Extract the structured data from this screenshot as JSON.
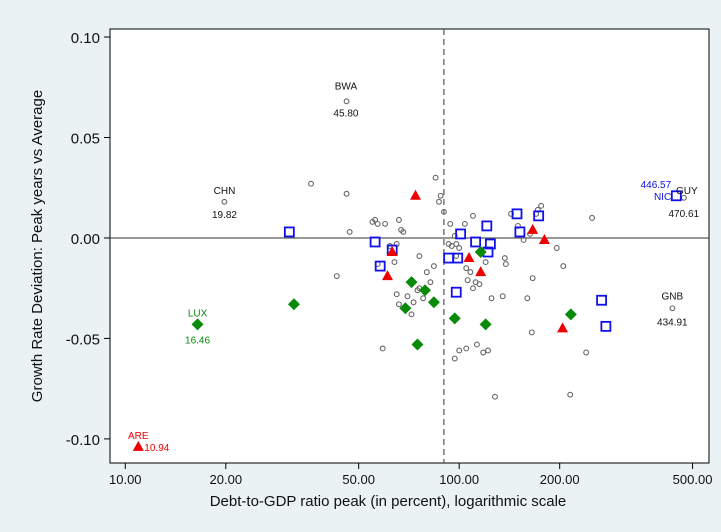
{
  "chart_data": {
    "type": "scatter",
    "title": "",
    "xlabel": "Debt-to-GDP ratio peak (in percent), logarithmic scale",
    "ylabel": "Growth Rate Deviation: Peak years vs Average",
    "xscale": "log",
    "xlim": [
      9,
      560
    ],
    "ylim": [
      -0.112,
      0.104
    ],
    "xticks": [
      10,
      20,
      50,
      100,
      200,
      500
    ],
    "xtick_labels": [
      "10.00",
      "20.00",
      "50.00",
      "100.00",
      "200.00",
      "500.00"
    ],
    "yticks": [
      0.1,
      0.05,
      0.0,
      -0.05,
      -0.1
    ],
    "ytick_labels": [
      "0.10",
      "0.05",
      "0.00",
      "-0.05",
      "-0.10"
    ],
    "reference_lines": {
      "vertical_x": 90,
      "horizontal_y": 0
    },
    "grid": false,
    "legend": "none",
    "colors": {
      "circle": "#666666",
      "square": "#1010ee",
      "triangle": "#ee0000",
      "diamond": "#0a8a0a",
      "label_default": "#111111",
      "plot_bg": "#ffffff",
      "page_bg": "#eaf2f3"
    },
    "series": [
      {
        "marker": "circle",
        "color": "#666666",
        "points": [
          [
            46,
            0.068
          ],
          [
            19.8,
            0.018
          ],
          [
            36,
            0.027
          ],
          [
            46,
            0.022
          ],
          [
            47,
            0.003
          ],
          [
            43,
            -0.019
          ],
          [
            55,
            0.008
          ],
          [
            56,
            0.009
          ],
          [
            57,
            0.007
          ],
          [
            60,
            0.007
          ],
          [
            57,
            -0.013
          ],
          [
            62,
            -0.004
          ],
          [
            66,
            0.009
          ],
          [
            67,
            0.004
          ],
          [
            68,
            0.003
          ],
          [
            65,
            -0.003
          ],
          [
            64,
            -0.012
          ],
          [
            59,
            -0.055
          ],
          [
            65,
            -0.028
          ],
          [
            66,
            -0.033
          ],
          [
            70,
            -0.029
          ],
          [
            73,
            -0.032
          ],
          [
            72,
            -0.038
          ],
          [
            75,
            -0.026
          ],
          [
            76,
            -0.025
          ],
          [
            78,
            -0.03
          ],
          [
            76,
            -0.009
          ],
          [
            80,
            -0.017
          ],
          [
            82,
            -0.022
          ],
          [
            84,
            -0.014
          ],
          [
            85,
            0.03
          ],
          [
            87,
            0.018
          ],
          [
            90,
            0.013
          ],
          [
            88,
            0.021
          ],
          [
            94,
            0.007
          ],
          [
            93,
            -0.003
          ],
          [
            95,
            -0.004
          ],
          [
            97,
            0.001
          ],
          [
            98,
            -0.003
          ],
          [
            100,
            -0.005
          ],
          [
            98,
            -0.009
          ],
          [
            105,
            -0.015
          ],
          [
            106,
            -0.021
          ],
          [
            108,
            -0.017
          ],
          [
            110,
            -0.025
          ],
          [
            112,
            -0.022
          ],
          [
            115,
            -0.023
          ],
          [
            104,
            0.007
          ],
          [
            110,
            0.011
          ],
          [
            120,
            -0.012
          ],
          [
            125,
            -0.03
          ],
          [
            113,
            -0.053
          ],
          [
            105,
            -0.055
          ],
          [
            100,
            -0.056
          ],
          [
            97,
            -0.06
          ],
          [
            118,
            -0.057
          ],
          [
            122,
            -0.056
          ],
          [
            128,
            -0.079
          ],
          [
            137,
            -0.01
          ],
          [
            138,
            -0.013
          ],
          [
            135,
            -0.029
          ],
          [
            143,
            0.012
          ],
          [
            150,
            0.006
          ],
          [
            156,
            -0.001
          ],
          [
            163,
            0.002
          ],
          [
            166,
            -0.02
          ],
          [
            170,
            0.012
          ],
          [
            172,
            0.014
          ],
          [
            176,
            0.016
          ],
          [
            160,
            -0.03
          ],
          [
            165,
            -0.047
          ],
          [
            196,
            -0.005
          ],
          [
            205,
            -0.014
          ],
          [
            215,
            -0.078
          ],
          [
            240,
            -0.057
          ],
          [
            250,
            0.01
          ],
          [
            435,
            -0.035
          ],
          [
            471,
            0.02
          ]
        ]
      },
      {
        "marker": "square",
        "color": "#1010ee",
        "points": [
          [
            31,
            0.003
          ],
          [
            56,
            -0.002
          ],
          [
            58,
            -0.014
          ],
          [
            63,
            -0.006
          ],
          [
            93,
            -0.01
          ],
          [
            99,
            -0.01
          ],
          [
            98,
            -0.027
          ],
          [
            101,
            0.002
          ],
          [
            112,
            -0.002
          ],
          [
            121,
            0.006
          ],
          [
            122,
            -0.007
          ],
          [
            124,
            -0.003
          ],
          [
            149,
            0.012
          ],
          [
            152,
            0.003
          ],
          [
            173,
            0.011
          ],
          [
            267,
            -0.031
          ],
          [
            275,
            -0.044
          ],
          [
            447,
            0.021
          ]
        ]
      },
      {
        "marker": "triangle",
        "color": "#ee0000",
        "points": [
          [
            10.94,
            -0.104
          ],
          [
            61,
            -0.019
          ],
          [
            63,
            -0.007
          ],
          [
            74,
            0.021
          ],
          [
            107,
            -0.01
          ],
          [
            116,
            -0.017
          ],
          [
            166,
            0.004
          ],
          [
            180,
            -0.001
          ],
          [
            204,
            -0.045
          ]
        ]
      },
      {
        "marker": "diamond",
        "color": "#0a8a0a",
        "points": [
          [
            16.46,
            -0.043
          ],
          [
            32,
            -0.033
          ],
          [
            69,
            -0.035
          ],
          [
            72,
            -0.022
          ],
          [
            75,
            -0.053
          ],
          [
            79,
            -0.026
          ],
          [
            84,
            -0.032
          ],
          [
            97,
            -0.04
          ],
          [
            116,
            -0.007
          ],
          [
            120,
            -0.043
          ],
          [
            216,
            -0.038
          ]
        ]
      }
    ],
    "annotations": [
      {
        "code": "BWA",
        "value_label": "45.80",
        "x": 45.8,
        "y": 0.068,
        "color": "#111111"
      },
      {
        "code": "CHN",
        "value_label": "19.82",
        "x": 19.82,
        "y": 0.018,
        "color": "#111111"
      },
      {
        "code": "LUX",
        "value_label": "16.46",
        "x": 16.46,
        "y": -0.043,
        "color": "#0a8a0a"
      },
      {
        "code": "ARE",
        "value_label": "10.94",
        "x": 10.94,
        "y": -0.104,
        "color": "#ee0000"
      },
      {
        "code": "NIC",
        "value_label": "446.57",
        "x": 446.57,
        "y": 0.021,
        "color": "#1010ee"
      },
      {
        "code": "GUY",
        "value_label": "470.61",
        "x": 470.61,
        "y": 0.02,
        "color": "#111111"
      },
      {
        "code": "GNB",
        "value_label": "434.91",
        "x": 434.91,
        "y": -0.035,
        "color": "#111111"
      }
    ]
  }
}
